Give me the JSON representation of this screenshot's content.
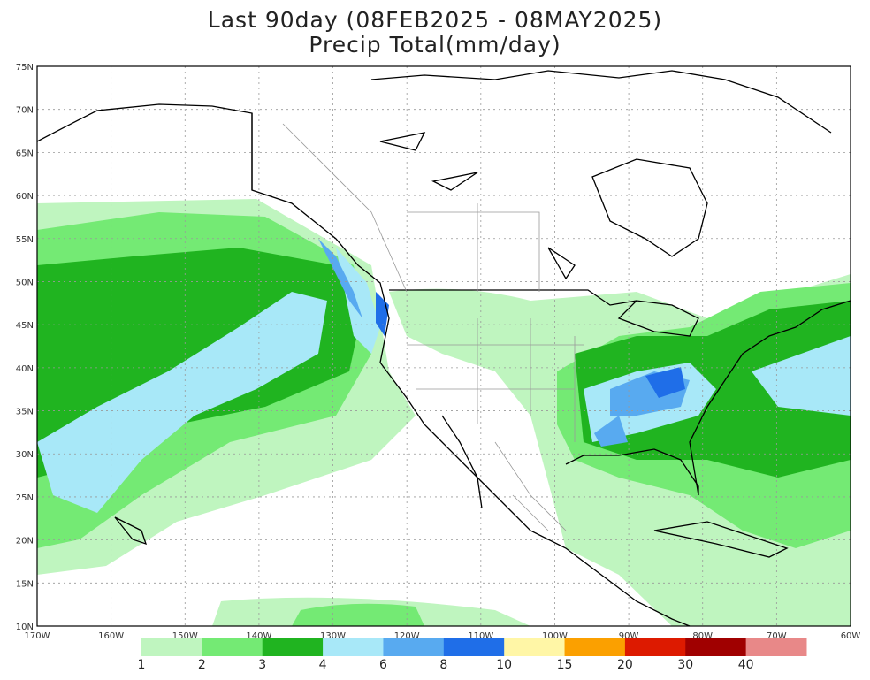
{
  "title_line1": "Last 90day (08FEB2025 - 08MAY2025)",
  "title_line2": "Precip Total(mm/day)",
  "lat_labels": [
    "75N",
    "70N",
    "65N",
    "60N",
    "55N",
    "50N",
    "45N",
    "40N",
    "35N",
    "30N",
    "25N",
    "20N",
    "15N",
    "10N"
  ],
  "lon_labels": [
    "170W",
    "160W",
    "150W",
    "140W",
    "130W",
    "120W",
    "110W",
    "100W",
    "90W",
    "80W",
    "70W",
    "60W"
  ],
  "legend": {
    "thresholds": [
      "1",
      "2",
      "3",
      "4",
      "6",
      "8",
      "10",
      "15",
      "20",
      "30",
      "40"
    ],
    "colors": [
      "#bff5bf",
      "#74ea74",
      "#20b420",
      "#a8e8f8",
      "#58aaf0",
      "#1f6ee8",
      "#fff6a6",
      "#fba000",
      "#dd1a00",
      "#a00000",
      "#e88888"
    ]
  }
}
